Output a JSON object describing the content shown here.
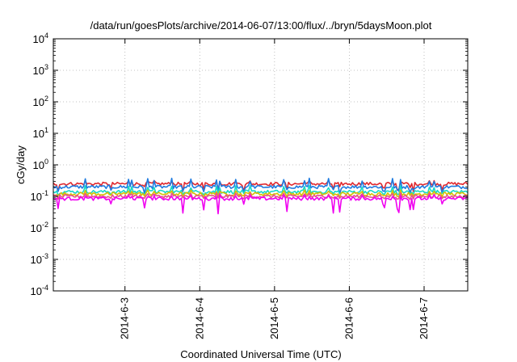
{
  "chart_data": {
    "type": "line",
    "title": "/data/run/goesPlots/archive/2014-06-07/13:00/flux/../bryn/5daysMoon.plot",
    "xlabel": "Coordinated Universal Time (UTC)",
    "ylabel": "cGy/day",
    "yscale": "log",
    "ylim": [
      0.0001,
      10000
    ],
    "y_ticks": [
      {
        "base": "10",
        "exp": "-4"
      },
      {
        "base": "10",
        "exp": "-3"
      },
      {
        "base": "10",
        "exp": "-2"
      },
      {
        "base": "10",
        "exp": "-1"
      },
      {
        "base": "10",
        "exp": "0"
      },
      {
        "base": "10",
        "exp": "1"
      },
      {
        "base": "10",
        "exp": "2"
      },
      {
        "base": "10",
        "exp": "3"
      },
      {
        "base": "10",
        "exp": "4"
      }
    ],
    "x_range": [
      "2014-06-02 01:00",
      "2014-06-07 14:00"
    ],
    "x_ticks": [
      "2014-6-3",
      "2014-6-4",
      "2014-6-5",
      "2014-6-6",
      "2014-6-7"
    ],
    "grid": true,
    "legend": "none",
    "series": [
      {
        "color": "#e0282e",
        "typical_value": 0.25,
        "min": 0.14,
        "max": 0.32
      },
      {
        "color": "#1e7be0",
        "typical_value": 0.2,
        "min": 0.12,
        "max": 0.38
      },
      {
        "color": "#18d8c8",
        "typical_value": 0.14,
        "min": 0.11,
        "max": 0.22
      },
      {
        "color": "#d6c000",
        "typical_value": 0.12,
        "min": 0.095,
        "max": 0.16
      },
      {
        "color": "#e8508c",
        "typical_value": 0.1,
        "min": 0.08,
        "max": 0.13
      },
      {
        "color": "#f000f0",
        "typical_value": 0.085,
        "min": 0.028,
        "max": 0.11
      }
    ]
  }
}
